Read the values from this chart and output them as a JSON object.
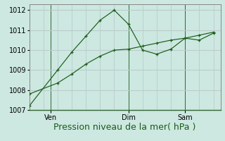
{
  "background_color": "#cce8e0",
  "grid_color": "#bbcccc",
  "line_color": "#1a5c1a",
  "vline_color": "#336633",
  "title": "Pression niveau de la mer( hPa )",
  "ylim": [
    1007,
    1012.3
  ],
  "yticks": [
    1007,
    1008,
    1009,
    1010,
    1011,
    1012
  ],
  "series1_x": [
    0,
    2,
    3,
    4,
    5,
    6,
    7,
    8,
    9,
    10,
    11,
    12,
    13
  ],
  "series1_y": [
    1007.2,
    1009.0,
    1009.9,
    1010.7,
    1011.5,
    1012.0,
    1011.3,
    1010.0,
    1009.8,
    1010.05,
    1010.6,
    1010.5,
    1010.85
  ],
  "series2_x": [
    0,
    2,
    3,
    4,
    5,
    6,
    7,
    8,
    9,
    10,
    11,
    12,
    13
  ],
  "series2_y": [
    1007.8,
    1008.35,
    1008.8,
    1009.3,
    1009.7,
    1010.0,
    1010.05,
    1010.2,
    1010.35,
    1010.5,
    1010.6,
    1010.75,
    1010.9
  ],
  "xtick_positions": [
    1.5,
    7,
    11
  ],
  "xtick_labels": [
    "Ven",
    "Dim",
    "Sam"
  ],
  "vline_positions": [
    1.5,
    7,
    11
  ],
  "xlim": [
    0,
    13.5
  ],
  "xlabel_fontsize": 9,
  "ytick_fontsize": 7,
  "xtick_fontsize": 7
}
